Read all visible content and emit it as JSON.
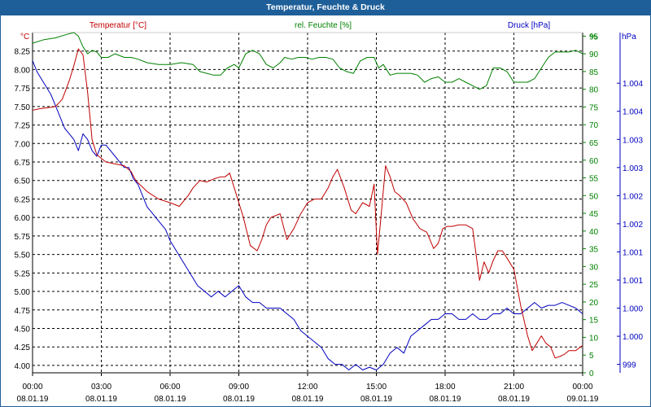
{
  "window": {
    "title": "Temperatur, Feuchte & Druck"
  },
  "chart_data": {
    "type": "line",
    "title": "Temperatur, Feuchte & Druck",
    "grid": true,
    "colors": {
      "temp": "#c00000",
      "hum": "#008000",
      "press": "#0000c0",
      "axis": "#000000",
      "grid": "#000000"
    },
    "x": {
      "range_hours": [
        0,
        24
      ],
      "ticks": [
        {
          "time": "00:00",
          "date": "08.01.19"
        },
        {
          "time": "03:00",
          "date": "08.01.19"
        },
        {
          "time": "06:00",
          "date": "08.01.19"
        },
        {
          "time": "09:00",
          "date": "08.01.19"
        },
        {
          "time": "12:00",
          "date": "08.01.19"
        },
        {
          "time": "15:00",
          "date": "08.01.19"
        },
        {
          "time": "18:00",
          "date": "08.01.19"
        },
        {
          "time": "21:00",
          "date": "08.01.19"
        },
        {
          "time": "00:00",
          "date": "09.01.19"
        }
      ]
    },
    "axes": {
      "temp": {
        "unit": "°C",
        "ylim": [
          3.9,
          8.5
        ],
        "ticks": [
          "4.00",
          "4.25",
          "4.50",
          "4.75",
          "5.00",
          "5.25",
          "5.50",
          "5.75",
          "6.00",
          "6.25",
          "6.50",
          "6.75",
          "7.00",
          "7.25",
          "7.50",
          "7.75",
          "8.00",
          "8.25"
        ]
      },
      "hum": {
        "unit": "%",
        "ylim": [
          0,
          96
        ],
        "ticks": [
          "0",
          "5",
          "10",
          "15",
          "20",
          "25",
          "30",
          "35",
          "40",
          "45",
          "50",
          "55",
          "60",
          "65",
          "70",
          "75",
          "80",
          "85",
          "90",
          "95"
        ]
      },
      "press": {
        "unit": "hPa",
        "ylim": [
          998.85,
          1004.9
        ],
        "ticks": [
          {
            "label": "999",
            "value": 999.0
          },
          {
            "label": "1.000",
            "value": 999.5
          },
          {
            "label": "1.000",
            "value": 1000.0
          },
          {
            "label": "1.001",
            "value": 1000.5
          },
          {
            "label": "1.001",
            "value": 1001.0
          },
          {
            "label": "1.002",
            "value": 1001.5
          },
          {
            "label": "1.002",
            "value": 1002.0
          },
          {
            "label": "1.003",
            "value": 1002.5
          },
          {
            "label": "1.003",
            "value": 1003.0
          },
          {
            "label": "1.004",
            "value": 1003.5
          },
          {
            "label": "1.004",
            "value": 1004.0
          }
        ]
      }
    },
    "series": [
      {
        "name": "Temperatur [°C]",
        "key": "temp",
        "x": [
          0,
          0.3,
          0.8,
          1.0,
          1.3,
          1.6,
          1.8,
          2.0,
          2.2,
          2.4,
          2.6,
          2.8,
          3.0,
          3.2,
          3.5,
          4.0,
          4.3,
          4.5,
          5.0,
          5.5,
          6.0,
          6.4,
          6.8,
          7.0,
          7.3,
          7.6,
          7.9,
          8.2,
          8.4,
          8.6,
          8.8,
          9.0,
          9.2,
          9.5,
          9.8,
          10.0,
          10.2,
          10.4,
          10.8,
          11.1,
          11.4,
          11.7,
          12.0,
          12.3,
          12.6,
          12.9,
          13.1,
          13.3,
          13.6,
          13.9,
          14.1,
          14.4,
          14.7,
          14.9,
          15.05,
          15.2,
          15.4,
          15.6,
          15.8,
          16.0,
          16.3,
          16.6,
          16.9,
          17.2,
          17.5,
          17.7,
          17.9,
          18.1,
          18.3,
          18.6,
          18.9,
          19.2,
          19.5,
          19.7,
          19.9,
          20.1,
          20.3,
          20.5,
          20.8,
          21.0,
          21.3,
          21.6,
          21.8,
          22.0,
          22.2,
          22.4,
          22.6,
          22.8,
          23.0,
          23.2,
          23.4,
          23.7,
          24.0
        ],
        "values": [
          7.45,
          7.47,
          7.49,
          7.5,
          7.6,
          7.85,
          8.05,
          8.28,
          8.2,
          7.7,
          7.05,
          6.85,
          6.8,
          6.75,
          6.73,
          6.7,
          6.62,
          6.5,
          6.35,
          6.25,
          6.2,
          6.15,
          6.3,
          6.4,
          6.5,
          6.48,
          6.52,
          6.55,
          6.55,
          6.6,
          6.4,
          6.2,
          6.0,
          5.62,
          5.55,
          5.7,
          5.9,
          6.0,
          6.05,
          5.7,
          5.85,
          6.05,
          6.2,
          6.25,
          6.25,
          6.4,
          6.55,
          6.65,
          6.4,
          6.1,
          6.05,
          6.2,
          6.15,
          6.45,
          5.5,
          6.0,
          6.7,
          6.55,
          6.35,
          6.3,
          6.2,
          5.98,
          5.85,
          5.8,
          5.58,
          5.65,
          5.85,
          5.88,
          5.88,
          5.9,
          5.9,
          5.85,
          5.15,
          5.4,
          5.25,
          5.42,
          5.55,
          5.55,
          5.4,
          5.3,
          4.8,
          4.4,
          4.2,
          4.3,
          4.4,
          4.3,
          4.25,
          4.1,
          4.12,
          4.15,
          4.2,
          4.2,
          4.27
        ]
      },
      {
        "name": "rel. Feuchte [%]",
        "key": "hum",
        "x": [
          0,
          0.5,
          1.0,
          1.5,
          1.8,
          2.0,
          2.2,
          2.4,
          2.6,
          2.8,
          3.0,
          3.3,
          3.6,
          4.0,
          4.3,
          4.6,
          5.0,
          5.5,
          6.0,
          6.5,
          7.0,
          7.3,
          7.6,
          7.9,
          8.2,
          8.5,
          8.8,
          9.0,
          9.3,
          9.6,
          9.9,
          10.2,
          10.5,
          10.8,
          11.0,
          11.3,
          11.6,
          11.9,
          12.2,
          12.5,
          12.8,
          13.1,
          13.4,
          13.7,
          14.0,
          14.3,
          14.6,
          14.9,
          15.1,
          15.3,
          15.6,
          15.9,
          16.2,
          16.5,
          16.8,
          17.1,
          17.4,
          17.7,
          18.0,
          18.3,
          18.6,
          18.9,
          19.2,
          19.5,
          19.8,
          20.1,
          20.4,
          20.7,
          21.0,
          21.3,
          21.6,
          21.9,
          22.2,
          22.5,
          22.8,
          23.1,
          23.4,
          23.7,
          24.0
        ],
        "values": [
          93,
          94,
          94.5,
          95.5,
          96,
          95,
          92,
          90,
          91,
          90.5,
          89,
          89,
          90,
          89,
          89,
          88.5,
          87.5,
          87,
          87,
          87.5,
          87,
          85,
          84.5,
          84,
          84,
          86,
          87,
          86,
          90,
          91,
          90,
          87,
          86,
          87.5,
          89,
          88.5,
          89,
          89,
          88.5,
          89,
          89,
          88.5,
          86,
          85,
          84.5,
          88,
          89,
          89,
          86,
          87,
          84,
          84.5,
          84.5,
          84.5,
          84,
          82,
          83,
          83.5,
          82,
          82,
          83,
          82,
          81,
          80,
          81,
          86,
          86,
          85,
          82,
          82,
          82,
          83,
          86,
          89,
          90.5,
          90.5,
          90.5,
          91,
          90
        ]
      },
      {
        "name": "Druck [hPa]",
        "key": "press",
        "x": [
          0,
          0.2,
          0.5,
          0.8,
          1.0,
          1.2,
          1.4,
          1.6,
          1.8,
          2.0,
          2.2,
          2.4,
          2.6,
          2.8,
          3.0,
          3.2,
          3.4,
          3.6,
          3.8,
          4.0,
          4.2,
          4.4,
          4.6,
          4.8,
          5.0,
          5.2,
          5.4,
          5.6,
          5.8,
          6.0,
          6.3,
          6.6,
          6.9,
          7.2,
          7.5,
          7.8,
          8.1,
          8.4,
          8.7,
          9.0,
          9.3,
          9.6,
          9.9,
          10.2,
          10.5,
          10.8,
          11.1,
          11.4,
          11.7,
          12.0,
          12.3,
          12.6,
          12.9,
          13.2,
          13.5,
          13.8,
          14.1,
          14.4,
          14.7,
          15.0,
          15.3,
          15.6,
          15.9,
          16.2,
          16.5,
          16.8,
          17.1,
          17.4,
          17.7,
          18.0,
          18.3,
          18.6,
          18.9,
          19.2,
          19.5,
          19.8,
          20.1,
          20.4,
          20.7,
          21.0,
          21.3,
          21.6,
          21.9,
          22.2,
          22.5,
          22.8,
          23.1,
          23.4,
          23.7,
          24.0
        ],
        "values": [
          1004.4,
          1004.2,
          1004.0,
          1003.8,
          1003.6,
          1003.4,
          1003.2,
          1003.1,
          1003.0,
          1002.8,
          1003.1,
          1003.0,
          1002.8,
          1002.7,
          1002.9,
          1002.9,
          1002.8,
          1002.7,
          1002.6,
          1002.5,
          1002.5,
          1002.3,
          1002.2,
          1002.0,
          1001.8,
          1001.7,
          1001.6,
          1001.5,
          1001.4,
          1001.2,
          1001.0,
          1000.8,
          1000.6,
          1000.4,
          1000.3,
          1000.2,
          1000.3,
          1000.2,
          1000.3,
          1000.4,
          1000.2,
          1000.1,
          1000.1,
          1000.0,
          1000.0,
          1000.0,
          999.9,
          999.8,
          999.6,
          999.5,
          999.4,
          999.3,
          999.1,
          999.0,
          999.0,
          998.9,
          999.0,
          998.9,
          998.95,
          998.9,
          999.0,
          999.2,
          999.3,
          999.2,
          999.5,
          999.6,
          999.7,
          999.8,
          999.8,
          999.9,
          999.9,
          999.8,
          999.8,
          999.9,
          999.8,
          999.8,
          999.9,
          999.9,
          1000.0,
          999.9,
          999.9,
          1000.0,
          1000.1,
          1000.0,
          1000.05,
          1000.05,
          1000.1,
          1000.05,
          1000.0,
          999.9
        ]
      }
    ]
  }
}
